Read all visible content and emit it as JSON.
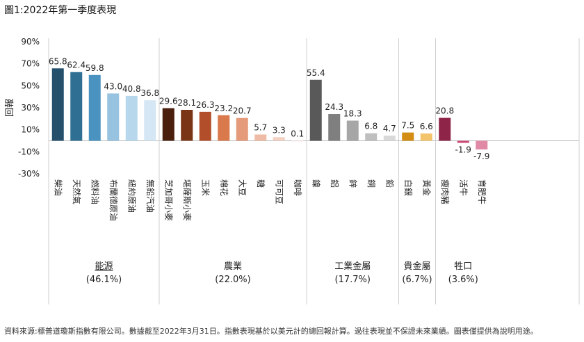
{
  "figure_title": "圖1:2022年第一季度表現",
  "source_note": "資料來源:標普道瓊斯指數有限公司。數據截至2022年3月31日。指數表現基於以美元計的總回報計算。過往表現並不保證未來業績。圖表僅提供為說明用途。",
  "chart_data": {
    "type": "bar",
    "title": "圖1:2022年第一季度表現",
    "ylabel": "回報",
    "xlabel": "",
    "ylim": [
      -30,
      90
    ],
    "yticks": [
      "90%",
      "70%",
      "50%",
      "30%",
      "10%",
      "-10%",
      "-30%"
    ],
    "ytick_values": [
      90,
      70,
      50,
      30,
      10,
      -10,
      -30
    ],
    "categories": [
      "柴油",
      "天然氣",
      "燃料油",
      "布蘭德原油",
      "紐約原油",
      "無鉛汽油",
      "芝加哥小麥",
      "堪薩斯小麥",
      "玉米",
      "棉花",
      "大豆",
      "糖",
      "可可豆",
      "咖啡",
      "鎳",
      "鋁",
      "鋅",
      "銅",
      "鉛",
      "白銀",
      "黃金",
      "瘦肉豬",
      "活牛",
      "育肥牛"
    ],
    "values": [
      65.8,
      62.4,
      59.8,
      43.0,
      40.8,
      36.8,
      29.6,
      28.1,
      26.3,
      23.2,
      20.7,
      5.7,
      3.3,
      0.1,
      55.4,
      24.3,
      18.3,
      6.8,
      4.7,
      7.5,
      6.6,
      20.8,
      -1.9,
      -7.9
    ],
    "value_labels": [
      "65.8",
      "62.4",
      "59.8",
      "43.0",
      "40.8",
      "36.8",
      "29.6",
      "28.1",
      "26.3",
      "23.2",
      "20.7",
      "5.7",
      "3.3",
      "0.1",
      "55.4",
      "24.3",
      "18.3",
      "6.8",
      "4.7",
      "7.5",
      "6.6",
      "20.8",
      "-1.9",
      "-7.9"
    ],
    "colors": [
      "#24506b",
      "#2e6f93",
      "#4a93c1",
      "#97c3e0",
      "#b7d8ec",
      "#d5e7f4",
      "#4a1f0d",
      "#7a3517",
      "#b24f2a",
      "#d9794c",
      "#e59a7a",
      "#eebca6",
      "#f3d2c3",
      "#f8e6de",
      "#595959",
      "#7f7f7f",
      "#a6a6a6",
      "#bfbfbf",
      "#d9d9d9",
      "#d38d12",
      "#f4c46a",
      "#8e2448",
      "#c94a72",
      "#e08aa6"
    ],
    "groups": [
      {
        "name": "能源",
        "pct": "(46.1%)",
        "count": 6
      },
      {
        "name": "農業",
        "pct": "(22.0%)",
        "count": 8
      },
      {
        "name": "工業金屬",
        "pct": "(17.7%)",
        "count": 5
      },
      {
        "name": "貴金屬",
        "pct": "(6.7%)",
        "count": 2
      },
      {
        "name": "牲口",
        "pct": "(3.6%)",
        "count": 3
      }
    ],
    "grid": false,
    "legend": "none"
  }
}
